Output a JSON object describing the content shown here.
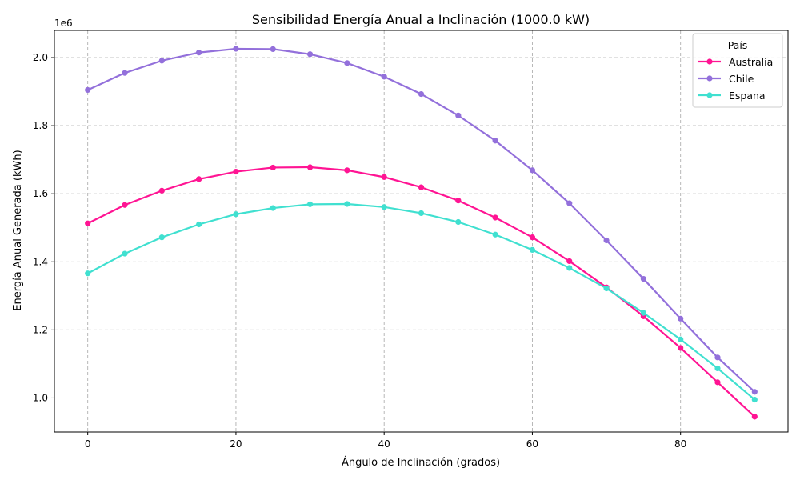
{
  "chart_data": {
    "type": "line",
    "title": "Sensibilidad Energía Anual a Inclinación (1000.0 kW)",
    "xlabel": "Ángulo de Inclinación (grados)",
    "ylabel": "Energía Anual Generada (kWh)",
    "y_offset_label": "1e6",
    "xlim": [
      -4.5,
      94.5
    ],
    "ylim": [
      0.9,
      2.08
    ],
    "x_ticks": [
      0,
      20,
      40,
      60,
      80
    ],
    "x_tick_labels": [
      "0",
      "20",
      "40",
      "60",
      "80"
    ],
    "y_ticks": [
      1.0,
      1.2,
      1.4,
      1.6,
      1.8,
      2.0
    ],
    "y_tick_labels": [
      "1.0",
      "1.2",
      "1.4",
      "1.6",
      "1.8",
      "2.0"
    ],
    "grid": true,
    "legend": {
      "title": "País",
      "position": "top-right"
    },
    "x": [
      0,
      5,
      10,
      15,
      20,
      25,
      30,
      35,
      40,
      45,
      50,
      55,
      60,
      65,
      70,
      75,
      80,
      85,
      90
    ],
    "series": [
      {
        "name": "Australia",
        "color": "#ff1493",
        "values": [
          1.513,
          1.567,
          1.609,
          1.643,
          1.665,
          1.677,
          1.678,
          1.669,
          1.649,
          1.619,
          1.58,
          1.53,
          1.472,
          1.402,
          1.325,
          1.24,
          1.147,
          1.046,
          0.945
        ]
      },
      {
        "name": "Chile",
        "color": "#9370db",
        "values": [
          1.905,
          1.955,
          1.991,
          2.015,
          2.026,
          2.025,
          2.01,
          1.984,
          1.944,
          1.893,
          1.83,
          1.756,
          1.669,
          1.572,
          1.463,
          1.35,
          1.233,
          1.119,
          1.018
        ]
      },
      {
        "name": "Espana",
        "color": "#40e0d0",
        "values": [
          1.366,
          1.424,
          1.472,
          1.51,
          1.54,
          1.558,
          1.569,
          1.57,
          1.561,
          1.543,
          1.517,
          1.48,
          1.435,
          1.382,
          1.322,
          1.25,
          1.172,
          1.087,
          0.995
        ]
      }
    ]
  }
}
